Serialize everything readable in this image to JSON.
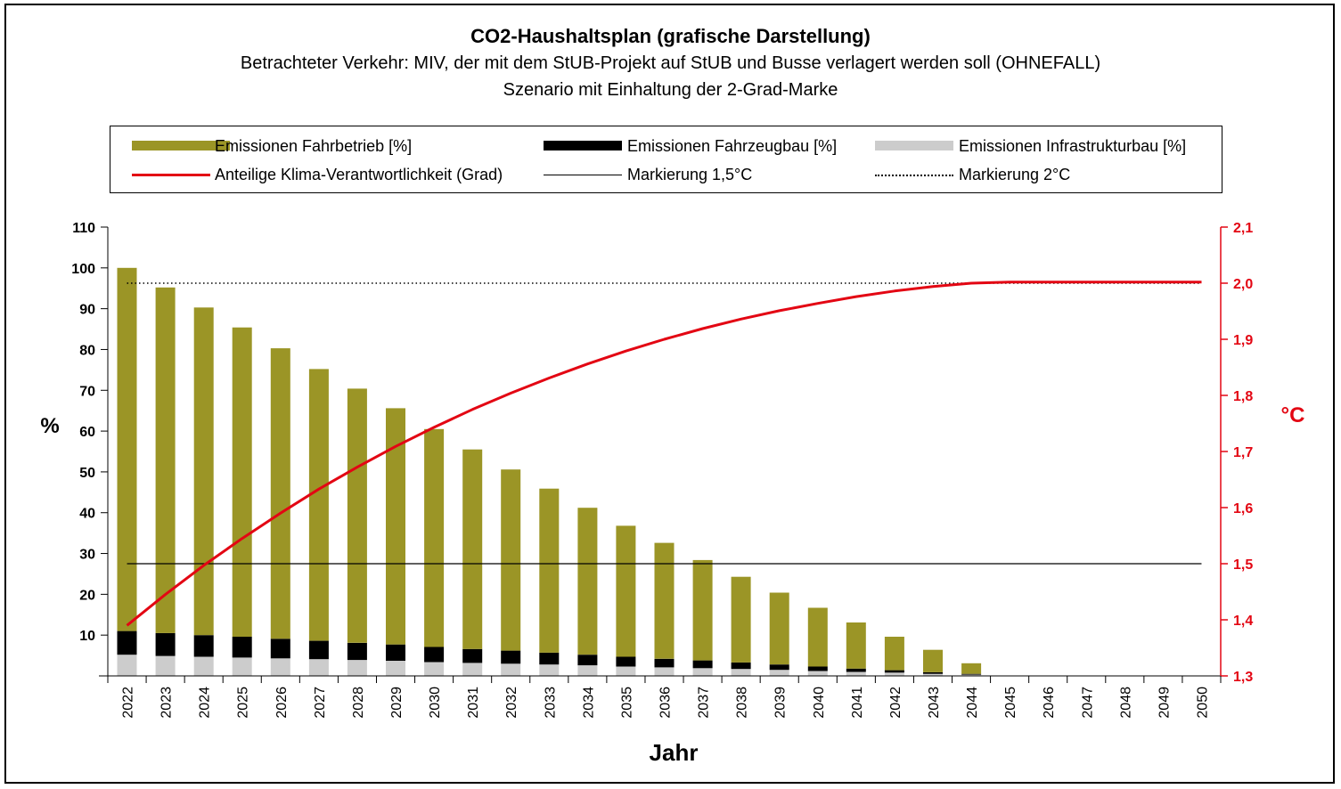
{
  "title": "CO2-Haushaltsplan (grafische Darstellung)",
  "subtitle1": "Betrachteter Verkehr: MIV, der mit dem StUB-Projekt auf StUB und Busse verlagert werden soll (OHNEFALL)",
  "subtitle2": "Szenario mit Einhaltung der 2-Grad-Marke",
  "legend": {
    "fahrbetrieb": "Emissionen Fahrbetrieb [%]",
    "fahrzeugbau": "Emissionen Fahrzeugbau [%]",
    "infrastruktur": "Emissionen Infrastrukturbau [%]",
    "klima": "Anteilige Klima-Verantwortlichkeit (Grad)",
    "mark15": "Markierung 1,5°C",
    "mark2": "Markierung 2°C"
  },
  "colors": {
    "fahrbetrieb": "#9b9526",
    "fahrzeugbau": "#000000",
    "infrastruktur": "#cccccc",
    "klima": "#e30613"
  },
  "chart_data": {
    "type": "bar",
    "stacked": true,
    "xlabel": "Jahr",
    "ylabel": "%",
    "y2label": "°C",
    "ylim": [
      0,
      110
    ],
    "y2lim": [
      1.3,
      2.1
    ],
    "yticks": [
      "10",
      "20",
      "30",
      "40",
      "50",
      "60",
      "70",
      "80",
      "90",
      "100",
      "110"
    ],
    "y2ticks": [
      "1,3",
      "1,4",
      "1,5",
      "1,6",
      "1,7",
      "1,8",
      "1,9",
      "2,0",
      "2,1"
    ],
    "categories": [
      "2022",
      "2023",
      "2024",
      "2025",
      "2026",
      "2027",
      "2028",
      "2029",
      "2030",
      "2031",
      "2032",
      "2033",
      "2034",
      "2035",
      "2036",
      "2037",
      "2038",
      "2039",
      "2040",
      "2041",
      "2042",
      "2043",
      "2044",
      "2045",
      "2046",
      "2047",
      "2048",
      "2049",
      "2050"
    ],
    "series": [
      {
        "name": "Emissionen Infrastrukturbau [%]",
        "values": [
          5.2,
          4.9,
          4.7,
          4.5,
          4.3,
          4.1,
          3.9,
          3.7,
          3.4,
          3.2,
          3.0,
          2.8,
          2.6,
          2.3,
          2.1,
          1.9,
          1.7,
          1.5,
          1.2,
          1.0,
          0.8,
          0.5,
          0.3,
          0,
          0,
          0,
          0,
          0,
          0
        ]
      },
      {
        "name": "Emissionen Fahrzeugbau [%]",
        "values": [
          5.8,
          5.6,
          5.3,
          5.1,
          4.8,
          4.5,
          4.2,
          4.0,
          3.7,
          3.4,
          3.2,
          2.9,
          2.6,
          2.4,
          2.1,
          1.9,
          1.6,
          1.3,
          1.1,
          0.8,
          0.6,
          0.4,
          0.2,
          0,
          0,
          0,
          0,
          0,
          0
        ]
      },
      {
        "name": "Emissionen Fahrbetrieb [%]",
        "values": [
          89.0,
          84.7,
          80.3,
          75.8,
          71.2,
          66.6,
          62.3,
          57.9,
          53.4,
          48.9,
          44.4,
          40.2,
          36.0,
          32.1,
          28.4,
          24.6,
          21.0,
          17.6,
          14.4,
          11.3,
          8.2,
          5.5,
          2.6,
          0,
          0,
          0,
          0,
          0,
          0
        ]
      },
      {
        "name": "Anteilige Klima-Verantwortlichkeit (Grad)",
        "axis": "y2",
        "type": "line",
        "values": [
          1.39,
          1.445,
          1.497,
          1.545,
          1.59,
          1.633,
          1.672,
          1.709,
          1.743,
          1.775,
          1.804,
          1.831,
          1.856,
          1.879,
          1.9,
          1.919,
          1.936,
          1.951,
          1.964,
          1.976,
          1.986,
          1.994,
          2.0,
          2.002,
          2.002,
          2.002,
          2.002,
          2.002,
          2.002
        ]
      }
    ],
    "hlines": [
      {
        "name": "Markierung 1,5°C",
        "axis": "y2",
        "value": 1.5,
        "style": "solid"
      },
      {
        "name": "Markierung 2°C",
        "axis": "y2",
        "value": 2.0,
        "style": "dotted"
      }
    ]
  }
}
